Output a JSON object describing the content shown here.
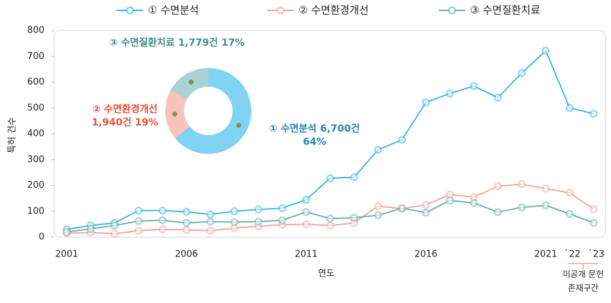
{
  "chart_data": [
    {
      "type": "line",
      "x_label": "연도",
      "y_label": "특허 건수",
      "categories": [
        "2001",
        null,
        null,
        null,
        null,
        "2006",
        null,
        null,
        null,
        null,
        "2011",
        null,
        null,
        null,
        null,
        "2016",
        null,
        null,
        null,
        null,
        "2021",
        "`22",
        "`23"
      ],
      "series": [
        {
          "name": "① 수면분석",
          "color": "#35b2de",
          "values": [
            30,
            45,
            55,
            103,
            103,
            98,
            88,
            100,
            107,
            112,
            145,
            228,
            232,
            338,
            377,
            522,
            556,
            585,
            540,
            635,
            722,
            500,
            478
          ]
        },
        {
          "name": "② 수면환경개선",
          "color": "#f4a096",
          "values": [
            15,
            18,
            13,
            25,
            30,
            28,
            25,
            35,
            42,
            48,
            50,
            45,
            55,
            120,
            110,
            125,
            165,
            155,
            197,
            205,
            188,
            172,
            108
          ]
        },
        {
          "name": "③ 수면질환치료",
          "color": "#66adad",
          "values": [
            20,
            32,
            45,
            62,
            65,
            55,
            60,
            58,
            60,
            65,
            97,
            72,
            75,
            85,
            112,
            95,
            142,
            132,
            97,
            115,
            123,
            90,
            55
          ]
        }
      ],
      "ylim": [
        0,
        800
      ],
      "yticks": [
        0,
        100,
        200,
        300,
        400,
        500,
        600,
        700,
        800
      ],
      "grid": false,
      "legend": "top",
      "annotation": [
        "미공개 문헌",
        "존재구간"
      ],
      "annotation_color": "#f4a096"
    },
    {
      "type": "pie",
      "donut": true,
      "categories": [
        "① 수면분석",
        "② 수면환경개선",
        "③ 수면질환치료"
      ],
      "values": [
        64,
        19,
        17
      ],
      "value_labels": [
        "64%",
        "19%",
        "17%"
      ],
      "count_labels": [
        "6,700건",
        "1,940건",
        "1,779건"
      ],
      "colors": [
        "#80d3f3",
        "#f9c3bc",
        "#a8d3d3"
      ],
      "label_colors": [
        "#2a86b0",
        "#e5513c",
        "#3f8f8f"
      ]
    }
  ]
}
